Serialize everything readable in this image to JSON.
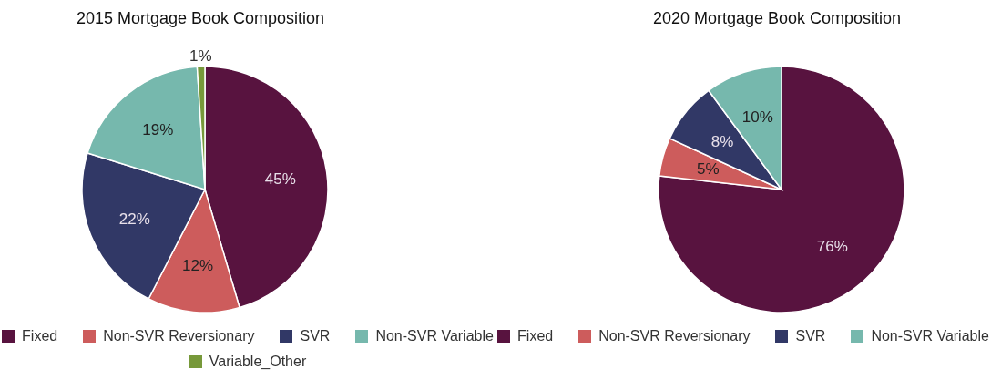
{
  "chart_data": [
    {
      "type": "pie",
      "title": "2015 Mortgage Book Composition",
      "categories": [
        "Fixed",
        "Non-SVR Reversionary",
        "SVR",
        "Non-SVR Variable",
        "Variable_Other"
      ],
      "values": [
        45,
        12,
        22,
        19,
        1
      ],
      "colors": [
        "#58133f",
        "#cd5c5c",
        "#313866",
        "#76b8ad",
        "#77993a"
      ],
      "value_labels": [
        "45%",
        "12%",
        "22%",
        "19%",
        "1%"
      ],
      "legend": "bottom"
    },
    {
      "type": "pie",
      "title": "2020 Mortgage Book Composition",
      "categories": [
        "Fixed",
        "Non-SVR Reversionary",
        "SVR",
        "Non-SVR Variable"
      ],
      "values": [
        76,
        5,
        8,
        10
      ],
      "colors": [
        "#58133f",
        "#cd5c5c",
        "#313866",
        "#76b8ad"
      ],
      "value_labels": [
        "76%",
        "5%",
        "8%",
        "10%"
      ],
      "legend": "bottom"
    }
  ]
}
